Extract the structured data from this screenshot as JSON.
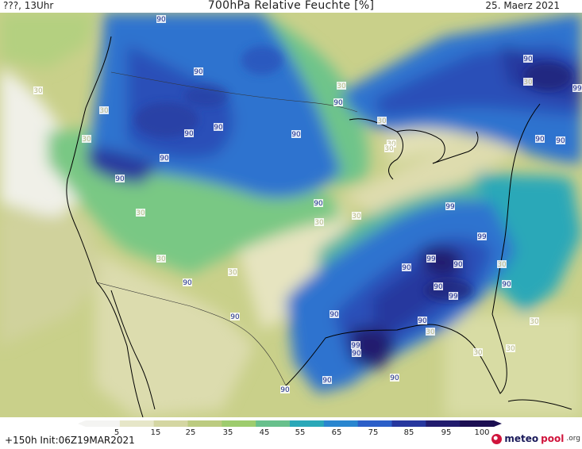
{
  "header": {
    "left": "???, 13Uhr",
    "title": "700hPa Relative Feuchte [%]",
    "right": "25. Maerz 2021"
  },
  "map": {
    "field": "700hPa relative humidity",
    "region": "United States / southern Canada / northern Mexico",
    "labels": [
      {
        "text": "90"
      },
      {
        "text": "90"
      },
      {
        "text": "30"
      },
      {
        "text": "30"
      },
      {
        "text": "30"
      },
      {
        "text": "90"
      },
      {
        "text": "90"
      },
      {
        "text": "90"
      },
      {
        "text": "90"
      },
      {
        "text": "90"
      },
      {
        "text": "30"
      },
      {
        "text": "30"
      },
      {
        "text": "90"
      },
      {
        "text": "30"
      },
      {
        "text": "30"
      },
      {
        "text": "30"
      },
      {
        "text": "90"
      },
      {
        "text": "90"
      },
      {
        "text": "30"
      },
      {
        "text": "90"
      },
      {
        "text": "30"
      },
      {
        "text": "99"
      },
      {
        "text": "99"
      },
      {
        "text": "90"
      },
      {
        "text": "99"
      },
      {
        "text": "90"
      },
      {
        "text": "30"
      },
      {
        "text": "90"
      },
      {
        "text": "90"
      },
      {
        "text": "90"
      },
      {
        "text": "30"
      },
      {
        "text": "99"
      },
      {
        "text": "90"
      },
      {
        "text": "30"
      },
      {
        "text": "30"
      },
      {
        "text": "30"
      },
      {
        "text": "90"
      },
      {
        "text": "90"
      },
      {
        "text": "90"
      },
      {
        "text": "30"
      },
      {
        "text": "99"
      },
      {
        "text": "90"
      },
      {
        "text": "90"
      },
      {
        "text": "99"
      },
      {
        "text": "90"
      },
      {
        "text": "30"
      },
      {
        "text": "90"
      },
      {
        "text": "30"
      }
    ]
  },
  "legend": {
    "ticks": [
      "5",
      "15",
      "25",
      "35",
      "45",
      "55",
      "65",
      "75",
      "85",
      "95",
      "100"
    ],
    "colors": [
      "#f4f4f2",
      "#e6e6c8",
      "#d4d6a2",
      "#bccb80",
      "#9ecc6e",
      "#68c08c",
      "#2aa8b8",
      "#2a86cf",
      "#2c5fc8",
      "#27379e",
      "#221c6e",
      "#1c0f52"
    ]
  },
  "footer": {
    "run_info": "+150h Init:06Z19MAR2021",
    "brand_meteo": "meteo",
    "brand_pool": "pool",
    "brand_org": ".org"
  }
}
